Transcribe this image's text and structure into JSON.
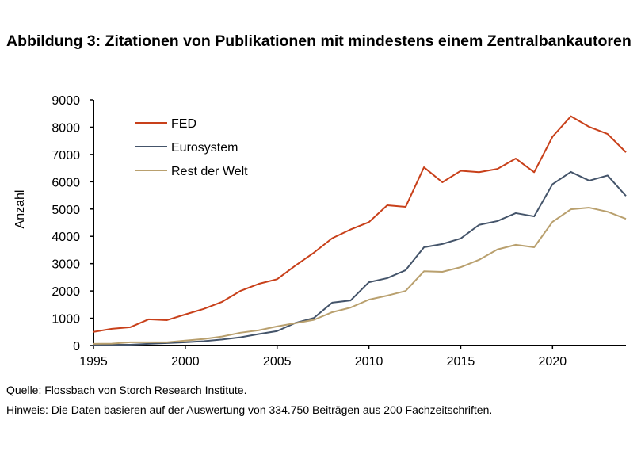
{
  "chart_data": {
    "type": "line",
    "title": "Abbildung 3: Zitationen von Publikationen mit mindestens einem Zentralbankautoren",
    "xlabel": "",
    "ylabel": "Anzahl",
    "xlim": [
      1995,
      2024
    ],
    "ylim": [
      0,
      9000
    ],
    "xticks": [
      1995,
      2000,
      2005,
      2010,
      2015,
      2020
    ],
    "yticks": [
      0,
      1000,
      2000,
      3000,
      4000,
      5000,
      6000,
      7000,
      8000,
      9000
    ],
    "grid": false,
    "legend_position": "top-left",
    "x": [
      1995,
      1996,
      1997,
      1998,
      1999,
      2000,
      2001,
      2002,
      2003,
      2004,
      2005,
      2006,
      2007,
      2008,
      2009,
      2010,
      2011,
      2012,
      2013,
      2014,
      2015,
      2016,
      2017,
      2018,
      2019,
      2020,
      2021,
      2022,
      2023,
      2024
    ],
    "series": [
      {
        "name": "FED",
        "color": "#C8401A",
        "values": [
          500,
          612,
          670,
          960,
          930,
          1140,
          1340,
          1600,
          2000,
          2260,
          2430,
          2930,
          3400,
          3930,
          4250,
          4520,
          5140,
          5080,
          6530,
          5980,
          6400,
          6350,
          6470,
          6850,
          6350,
          7650,
          8400,
          8010,
          7750,
          7080
        ]
      },
      {
        "name": "Eurosystem",
        "color": "#44546A",
        "values": [
          30,
          30,
          30,
          60,
          90,
          120,
          160,
          220,
          300,
          420,
          530,
          830,
          1010,
          1570,
          1650,
          2320,
          2470,
          2760,
          3600,
          3720,
          3920,
          4420,
          4560,
          4850,
          4730,
          5910,
          6360,
          6040,
          6230,
          5480
        ]
      },
      {
        "name": "Rest der Welt",
        "color": "#B9A06E",
        "values": [
          60,
          70,
          120,
          120,
          120,
          180,
          240,
          330,
          470,
          560,
          700,
          820,
          940,
          1220,
          1390,
          1680,
          1830,
          2000,
          2720,
          2700,
          2870,
          3140,
          3520,
          3690,
          3600,
          4530,
          4990,
          5050,
          4900,
          4640
        ]
      }
    ]
  },
  "notes": {
    "source": "Quelle: Flossbach von Storch Research Institute.",
    "hint": "Hinweis: Die Daten basieren auf der Auswertung von 334.750 Beiträgen aus 200 Fachzeitschriften."
  }
}
